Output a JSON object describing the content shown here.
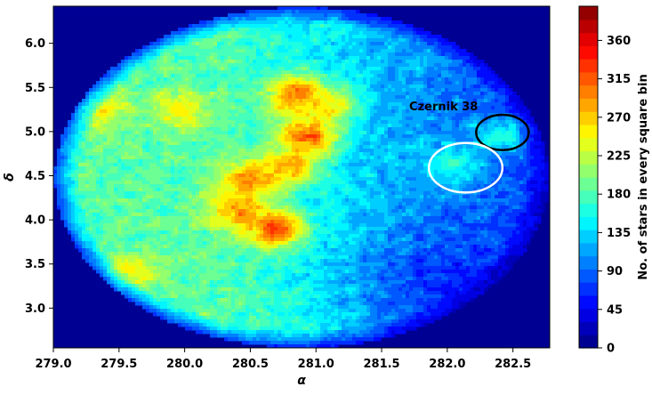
{
  "chart_data": {
    "type": "heatmap",
    "title": "",
    "xlabel": "α",
    "ylabel": "δ",
    "xlim": [
      279.0,
      282.78
    ],
    "ylim": [
      2.55,
      6.42
    ],
    "xticks": [
      279.0,
      279.5,
      280.0,
      280.5,
      281.0,
      281.5,
      282.0,
      282.5
    ],
    "xtick_labels": [
      "279.0",
      "279.5",
      "280.0",
      "280.5",
      "281.0",
      "281.5",
      "282.0",
      "282.5"
    ],
    "yticks": [
      3.0,
      3.5,
      4.0,
      4.5,
      5.0,
      5.5,
      6.0
    ],
    "ytick_labels": [
      "3.0",
      "3.5",
      "4.0",
      "4.5",
      "5.0",
      "5.5",
      "6.0"
    ],
    "colorbar": {
      "label": "No. of stars in every square bin",
      "range": [
        0,
        400
      ],
      "ticks": [
        0,
        45,
        90,
        135,
        180,
        225,
        270,
        315,
        360
      ],
      "tick_labels": [
        "0",
        "45",
        "90",
        "135",
        "180",
        "225",
        "270",
        "315",
        "360"
      ],
      "colormap": "jet",
      "levels": 26
    },
    "field": {
      "shape": "circular",
      "center": [
        280.89,
        4.48
      ],
      "radius_alpha": 1.88,
      "radius_delta": 1.93,
      "background_value": 0,
      "base_value_west": 185,
      "base_value_east": 70
    },
    "density_peaks": [
      {
        "alpha": 280.85,
        "delta": 5.4,
        "value": 340
      },
      {
        "alpha": 280.95,
        "delta": 4.95,
        "value": 345
      },
      {
        "alpha": 280.8,
        "delta": 4.6,
        "value": 300
      },
      {
        "alpha": 280.5,
        "delta": 4.45,
        "value": 310
      },
      {
        "alpha": 280.4,
        "delta": 4.1,
        "value": 300
      },
      {
        "alpha": 280.7,
        "delta": 3.9,
        "value": 350
      },
      {
        "alpha": 281.1,
        "delta": 5.3,
        "value": 270
      },
      {
        "alpha": 279.95,
        "delta": 5.25,
        "value": 265
      },
      {
        "alpha": 279.35,
        "delta": 5.25,
        "value": 260
      },
      {
        "alpha": 279.6,
        "delta": 3.4,
        "value": 255
      },
      {
        "alpha": 282.4,
        "delta": 4.95,
        "value": 170
      },
      {
        "alpha": 282.05,
        "delta": 4.6,
        "value": 175
      }
    ],
    "annotations": [
      {
        "text": "Czernik 38",
        "alpha": 281.71,
        "delta": 5.24
      }
    ],
    "circles": [
      {
        "name": "czernik-38-circle",
        "alpha": 282.42,
        "delta": 4.99,
        "r_alpha": 0.2,
        "r_delta": 0.2,
        "color": "#000000"
      },
      {
        "name": "control-field-circle",
        "alpha": 282.14,
        "delta": 4.59,
        "r_alpha": 0.28,
        "r_delta": 0.28,
        "color": "#ffffff"
      }
    ],
    "grid": false
  }
}
